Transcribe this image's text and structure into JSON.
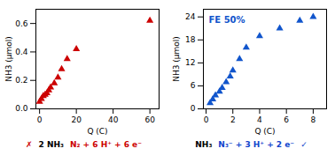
{
  "chart_data": [
    {
      "type": "scatter",
      "x": [
        0,
        1,
        2,
        3,
        4,
        5,
        6,
        8,
        10,
        12,
        15,
        20,
        60
      ],
      "y": [
        0.05,
        0.07,
        0.09,
        0.1,
        0.11,
        0.13,
        0.15,
        0.18,
        0.22,
        0.28,
        0.35,
        0.42,
        0.62
      ],
      "color": "#cc0000",
      "marker": "triangle",
      "xlabel": "Q (C)",
      "ylabel": "NH3 (μmol)",
      "xlim": [
        -2,
        65
      ],
      "ylim": [
        0,
        0.7
      ],
      "xticks": [
        0,
        20,
        40,
        60
      ],
      "yticks": [
        {
          "value": 0.0,
          "label": "0.0"
        },
        0.2,
        0.4,
        0.6
      ],
      "annotations": [
        {
          "text": "✗",
          "color": "#cc0000"
        },
        {
          "text": "2 NH₃"
        },
        {
          "text": "N₂ + 6 H⁺ + 6 e⁻",
          "color": "#cc0000"
        }
      ]
    },
    {
      "type": "scatter",
      "x": [
        0.3,
        0.5,
        0.7,
        1.0,
        1.2,
        1.5,
        1.8,
        2.0,
        2.5,
        3.0,
        4.0,
        5.5,
        7.0,
        8.0
      ],
      "y": [
        1.5,
        2.5,
        3.5,
        4.5,
        5.5,
        7.0,
        8.5,
        10.0,
        13.0,
        16.0,
        19.0,
        21.0,
        23.0,
        24.0
      ],
      "color": "#1155cc",
      "marker": "triangle",
      "xlabel": "Q (C)",
      "ylabel": "NH3 (μmol)",
      "xlim": [
        -0.2,
        9
      ],
      "ylim": [
        0,
        26
      ],
      "xticks": [
        0,
        2,
        4,
        6,
        8
      ],
      "yticks": [
        0,
        6,
        12,
        18,
        24
      ],
      "annotation": "FE 50%",
      "annotations": [
        {
          "text": "NH₃"
        },
        {
          "text": "N₃⁻ + 3 H⁺ + 2 e⁻",
          "color": "#1144cc"
        },
        {
          "text": "✓",
          "color": "#1144cc"
        }
      ]
    }
  ]
}
